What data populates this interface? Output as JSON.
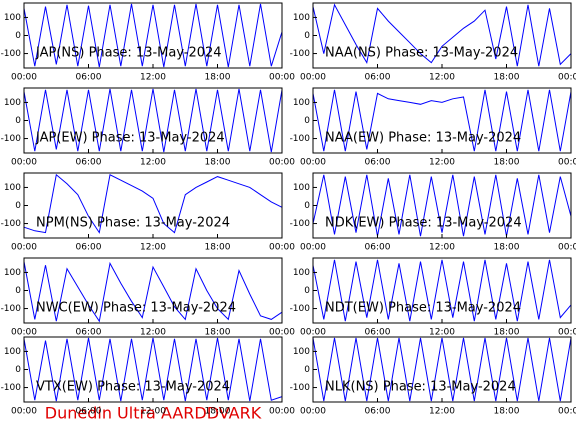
{
  "chart_data": [
    {
      "type": "line",
      "title": "JAP(NS) Phase: 13-May-2024",
      "color": "#0000ff",
      "x": [
        0,
        1,
        2,
        3,
        4,
        5,
        6,
        7,
        8,
        9,
        10,
        11,
        12,
        13,
        14,
        15,
        16,
        17,
        18,
        19,
        20,
        21,
        22,
        23,
        24
      ],
      "values": [
        150,
        -170,
        160,
        -160,
        170,
        -170,
        165,
        -175,
        170,
        -170,
        175,
        -170,
        170,
        -175,
        170,
        -170,
        175,
        -170,
        170,
        -175,
        170,
        -170,
        175,
        -170,
        20
      ],
      "xlim": [
        0,
        24
      ],
      "ylim": [
        -180,
        180
      ],
      "xticks": [
        {
          "value": 0,
          "label": "00:00"
        },
        {
          "value": 6,
          "label": "06:00"
        },
        {
          "value": 12,
          "label": "12:00"
        },
        {
          "value": 18,
          "label": "18:00"
        },
        {
          "value": 24,
          "label": "00:00"
        }
      ],
      "yticks": [
        100,
        0,
        -100
      ]
    },
    {
      "type": "line",
      "title": "NAA(NS) Phase: 13-May-2024",
      "color": "#0000ff",
      "x": [
        0,
        1,
        2,
        3,
        4,
        5,
        6,
        7,
        8,
        9,
        10,
        11,
        12,
        13,
        14,
        15,
        16,
        17,
        18,
        19,
        20,
        21,
        22,
        23,
        24
      ],
      "values": [
        160,
        -100,
        170,
        60,
        -50,
        -150,
        150,
        80,
        20,
        -40,
        -100,
        -150,
        -60,
        -10,
        40,
        80,
        140,
        -130,
        160,
        -170,
        170,
        -170,
        150,
        -160,
        -100
      ],
      "xlim": [
        0,
        24
      ],
      "ylim": [
        -180,
        180
      ],
      "xticks": [
        {
          "value": 0,
          "label": "00:00"
        },
        {
          "value": 6,
          "label": "06:00"
        },
        {
          "value": 12,
          "label": "12:00"
        },
        {
          "value": 18,
          "label": "18:00"
        },
        {
          "value": 24,
          "label": "00:00"
        }
      ],
      "yticks": [
        100,
        0,
        -100
      ]
    },
    {
      "type": "line",
      "title": "JAP(EW) Phase: 13-May-2024",
      "color": "#0000ff",
      "x": [
        0,
        1,
        2,
        3,
        4,
        5,
        6,
        7,
        8,
        9,
        10,
        11,
        12,
        13,
        14,
        15,
        16,
        17,
        18,
        19,
        20,
        21,
        22,
        23,
        24
      ],
      "values": [
        160,
        -170,
        170,
        -160,
        170,
        -170,
        170,
        -170,
        175,
        -170,
        170,
        -170,
        175,
        -175,
        170,
        -170,
        175,
        -170,
        170,
        -170,
        175,
        -170,
        170,
        -175,
        170
      ],
      "xlim": [
        0,
        24
      ],
      "ylim": [
        -180,
        180
      ],
      "xticks": [
        {
          "value": 0,
          "label": "00:00"
        },
        {
          "value": 6,
          "label": "06:00"
        },
        {
          "value": 12,
          "label": "12:00"
        },
        {
          "value": 18,
          "label": "18:00"
        },
        {
          "value": 24,
          "label": "00:00"
        }
      ],
      "yticks": [
        100,
        0,
        -100
      ]
    },
    {
      "type": "line",
      "title": "NAA(EW) Phase: 13-May-2024",
      "color": "#0000ff",
      "x": [
        0,
        1,
        2,
        3,
        4,
        5,
        6,
        7,
        8,
        9,
        10,
        11,
        12,
        13,
        14,
        15,
        16,
        17,
        18,
        19,
        20,
        21,
        22,
        23,
        24
      ],
      "values": [
        150,
        -170,
        170,
        -170,
        160,
        -160,
        150,
        120,
        110,
        100,
        90,
        110,
        100,
        120,
        130,
        -170,
        170,
        -170,
        160,
        -170,
        170,
        -170,
        170,
        -170,
        160
      ],
      "xlim": [
        0,
        24
      ],
      "ylim": [
        -180,
        180
      ],
      "xticks": [
        {
          "value": 0,
          "label": "00:00"
        },
        {
          "value": 6,
          "label": "06:00"
        },
        {
          "value": 12,
          "label": "12:00"
        },
        {
          "value": 18,
          "label": "18:00"
        },
        {
          "value": 24,
          "label": "00:00"
        }
      ],
      "yticks": [
        100,
        0,
        -100
      ]
    },
    {
      "type": "line",
      "title": "NPM(NS) Phase: 13-May-2024",
      "color": "#0000ff",
      "x": [
        0,
        1,
        2,
        3,
        4,
        5,
        6,
        7,
        8,
        9,
        10,
        11,
        12,
        13,
        14,
        15,
        16,
        17,
        18,
        19,
        20,
        21,
        22,
        23,
        24
      ],
      "values": [
        -120,
        -140,
        -150,
        170,
        120,
        60,
        -60,
        -150,
        170,
        140,
        110,
        80,
        40,
        -100,
        -150,
        60,
        100,
        130,
        160,
        140,
        120,
        100,
        60,
        20,
        -10
      ],
      "xlim": [
        0,
        24
      ],
      "ylim": [
        -180,
        180
      ],
      "xticks": [
        {
          "value": 0,
          "label": "00:00"
        },
        {
          "value": 6,
          "label": "06:00"
        },
        {
          "value": 12,
          "label": "12:00"
        },
        {
          "value": 18,
          "label": "18:00"
        },
        {
          "value": 24,
          "label": "00:00"
        }
      ],
      "yticks": [
        100,
        0,
        -100
      ]
    },
    {
      "type": "line",
      "title": "NDK(EW) Phase: 13-May-2024",
      "color": "#0000ff",
      "x": [
        0,
        1,
        2,
        3,
        4,
        5,
        6,
        7,
        8,
        9,
        10,
        11,
        12,
        13,
        14,
        15,
        16,
        17,
        18,
        19,
        20,
        21,
        22,
        23,
        24
      ],
      "values": [
        -100,
        170,
        -160,
        160,
        -150,
        170,
        -170,
        150,
        -160,
        170,
        -170,
        160,
        -150,
        170,
        -170,
        160,
        -160,
        170,
        -170,
        150,
        -160,
        170,
        -150,
        160,
        -60
      ],
      "xlim": [
        0,
        24
      ],
      "ylim": [
        -180,
        180
      ],
      "xticks": [
        {
          "value": 0,
          "label": "00:00"
        },
        {
          "value": 6,
          "label": "06:00"
        },
        {
          "value": 12,
          "label": "12:00"
        },
        {
          "value": 18,
          "label": "18:00"
        },
        {
          "value": 24,
          "label": "00:00"
        }
      ],
      "yticks": [
        100,
        0,
        -100
      ]
    },
    {
      "type": "line",
      "title": "NWC(EW) Phase: 13-May-2024",
      "color": "#0000ff",
      "x": [
        0,
        1,
        2,
        3,
        4,
        5,
        6,
        7,
        8,
        9,
        10,
        11,
        12,
        13,
        14,
        15,
        16,
        17,
        18,
        19,
        20,
        21,
        22,
        23,
        24
      ],
      "values": [
        160,
        -160,
        140,
        -170,
        120,
        20,
        -80,
        -170,
        150,
        40,
        -60,
        -150,
        130,
        20,
        -90,
        -160,
        120,
        0,
        -100,
        -160,
        110,
        -20,
        -140,
        -160,
        -120
      ],
      "xlim": [
        0,
        24
      ],
      "ylim": [
        -180,
        180
      ],
      "xticks": [
        {
          "value": 0,
          "label": "00:00"
        },
        {
          "value": 6,
          "label": "06:00"
        },
        {
          "value": 12,
          "label": "12:00"
        },
        {
          "value": 18,
          "label": "18:00"
        },
        {
          "value": 24,
          "label": "00:00"
        }
      ],
      "yticks": [
        100,
        0,
        -100
      ]
    },
    {
      "type": "line",
      "title": "NDT(EW) Phase: 13-May-2024",
      "color": "#0000ff",
      "x": [
        0,
        1,
        2,
        3,
        4,
        5,
        6,
        7,
        8,
        9,
        10,
        11,
        12,
        13,
        14,
        15,
        16,
        17,
        18,
        19,
        20,
        21,
        22,
        23,
        24
      ],
      "values": [
        140,
        -160,
        170,
        -170,
        160,
        -150,
        170,
        -160,
        150,
        -170,
        160,
        -160,
        170,
        -150,
        160,
        -170,
        170,
        -160,
        150,
        -170,
        160,
        -160,
        170,
        -150,
        -80
      ],
      "xlim": [
        0,
        24
      ],
      "ylim": [
        -180,
        180
      ],
      "xticks": [
        {
          "value": 0,
          "label": "00:00"
        },
        {
          "value": 6,
          "label": "06:00"
        },
        {
          "value": 12,
          "label": "12:00"
        },
        {
          "value": 18,
          "label": "18:00"
        },
        {
          "value": 24,
          "label": "00:00"
        }
      ],
      "yticks": [
        100,
        0,
        -100
      ]
    },
    {
      "type": "line",
      "title": "VTX(EW) Phase: 13-May-2024",
      "color": "#0000ff",
      "x": [
        0,
        1,
        2,
        3,
        4,
        5,
        6,
        7,
        8,
        9,
        10,
        11,
        12,
        13,
        14,
        15,
        16,
        17,
        18,
        19,
        20,
        21,
        22,
        23,
        24
      ],
      "values": [
        170,
        -170,
        160,
        -175,
        170,
        -170,
        175,
        -170,
        170,
        -175,
        170,
        -170,
        175,
        -170,
        170,
        -175,
        170,
        -170,
        175,
        -170,
        170,
        -175,
        170,
        -170,
        -150
      ],
      "xlim": [
        0,
        24
      ],
      "ylim": [
        -180,
        180
      ],
      "xticks": [
        {
          "value": 0,
          "label": "00:00"
        },
        {
          "value": 6,
          "label": "06:00"
        },
        {
          "value": 12,
          "label": "12:00"
        },
        {
          "value": 18,
          "label": "18:00"
        },
        {
          "value": 24,
          "label": "00:00"
        }
      ],
      "yticks": [
        100,
        0,
        -100
      ]
    },
    {
      "type": "line",
      "title": "NLK(NS) Phase: 13-May-2024",
      "color": "#0000ff",
      "x": [
        0,
        1,
        2,
        3,
        4,
        5,
        6,
        7,
        8,
        9,
        10,
        11,
        12,
        13,
        14,
        15,
        16,
        17,
        18,
        19,
        20,
        21,
        22,
        23,
        24
      ],
      "values": [
        175,
        -175,
        175,
        -175,
        175,
        -175,
        175,
        -175,
        175,
        -175,
        175,
        -175,
        175,
        -175,
        175,
        -175,
        175,
        -175,
        175,
        -175,
        175,
        -175,
        175,
        -175,
        175
      ],
      "xlim": [
        0,
        24
      ],
      "ylim": [
        -180,
        180
      ],
      "xticks": [
        {
          "value": 0,
          "label": "00:00"
        },
        {
          "value": 6,
          "label": "06:00"
        },
        {
          "value": 12,
          "label": "12:00"
        },
        {
          "value": 18,
          "label": "18:00"
        },
        {
          "value": 24,
          "label": "00:00"
        }
      ],
      "yticks": [
        100,
        0,
        -100
      ]
    }
  ],
  "footer": "Dunedin Ultra AARDDVARK"
}
